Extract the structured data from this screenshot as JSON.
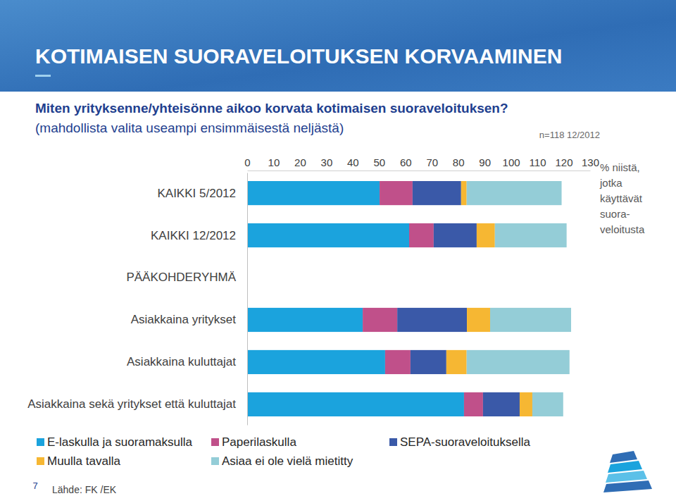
{
  "chart_data": {
    "type": "bar",
    "orientation": "horizontal",
    "stacked": true,
    "grid": false,
    "title": "KOTIMAISEN SUORAVELOITUKSEN KORVAAMINEN",
    "subtitle": [
      "Miten yrityksenne/yhteisönne aikoo korvata kotimaisen suoraveloituksen?",
      "(mahdollista valita useampi ensimmäisestä neljästä)"
    ],
    "xlabel": [
      "% niistä,",
      "jotka",
      "käyttävät",
      "suora-",
      "veloitusta"
    ],
    "annotations": [
      "n=118 12/2012",
      "Lähde: FK /EK",
      "7"
    ],
    "categories": [
      "KAIKKI 5/2012",
      "KAIKKI 12/2012",
      "PÄÄKOHDERYHMÄ",
      "Asiakkaina yritykset",
      "Asiakkaina kuluttajat",
      "Asiakkaina sekä yritykset että kuluttajat"
    ],
    "xlim": [
      0,
      130
    ],
    "xticks": [
      0,
      10,
      20,
      30,
      40,
      50,
      60,
      70,
      80,
      90,
      100,
      110,
      120,
      130
    ],
    "series": [
      {
        "name": "E-laskulla ja suoramaksulla",
        "color": "#1ba3dd",
        "values": [
          50.2,
          61.4,
          null,
          43.8,
          52.3,
          82.2
        ]
      },
      {
        "name": "Paperilaskulla",
        "color": "#c0508a",
        "values": [
          12.5,
          9.3,
          null,
          13.1,
          9.6,
          7.2
        ]
      },
      {
        "name": "SEPA-suoraveloituksella",
        "color": "#3a59a8",
        "values": [
          18.4,
          16.3,
          null,
          26.4,
          13.6,
          13.9
        ]
      },
      {
        "name": "Muulla tavalla",
        "color": "#f6b733",
        "values": [
          2.1,
          6.9,
          null,
          8.8,
          7.7,
          4.8
        ]
      },
      {
        "name": "Asiaa ei ole vielä mietitty",
        "color": "#94cdd7",
        "values": [
          36.0,
          27.2,
          null,
          30.7,
          39.0,
          11.7
        ]
      }
    ]
  }
}
